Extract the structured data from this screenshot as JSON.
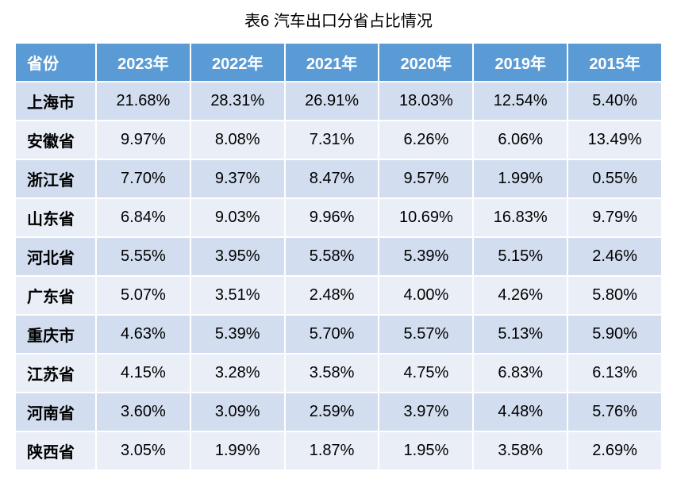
{
  "title": "表6 汽车出口分省占比情况",
  "table": {
    "type": "table",
    "header_bg": "#5b9bd5",
    "header_fg": "#ffffff",
    "row_odd_bg": "#d2deef",
    "row_even_bg": "#eaeff7",
    "border_color": "#ffffff",
    "font_size": 20,
    "columns": [
      "省份",
      "2023年",
      "2022年",
      "2021年",
      "2020年",
      "2019年",
      "2015年"
    ],
    "rows": [
      {
        "label": "上海市",
        "values": [
          "21.68%",
          "28.31%",
          "26.91%",
          "18.03%",
          "12.54%",
          "5.40%"
        ]
      },
      {
        "label": "安徽省",
        "values": [
          "9.97%",
          "8.08%",
          "7.31%",
          "6.26%",
          "6.06%",
          "13.49%"
        ]
      },
      {
        "label": "浙江省",
        "values": [
          "7.70%",
          "9.37%",
          "8.47%",
          "9.57%",
          "1.99%",
          "0.55%"
        ]
      },
      {
        "label": "山东省",
        "values": [
          "6.84%",
          "9.03%",
          "9.96%",
          "10.69%",
          "16.83%",
          "9.79%"
        ]
      },
      {
        "label": "河北省",
        "values": [
          "5.55%",
          "3.95%",
          "5.58%",
          "5.39%",
          "5.15%",
          "2.46%"
        ]
      },
      {
        "label": "广东省",
        "values": [
          "5.07%",
          "3.51%",
          "2.48%",
          "4.00%",
          "4.26%",
          "5.80%"
        ]
      },
      {
        "label": "重庆市",
        "values": [
          "4.63%",
          "5.39%",
          "5.70%",
          "5.57%",
          "5.13%",
          "5.90%"
        ]
      },
      {
        "label": "江苏省",
        "values": [
          "4.15%",
          "3.28%",
          "3.58%",
          "4.75%",
          "6.83%",
          "6.13%"
        ]
      },
      {
        "label": "河南省",
        "values": [
          "3.60%",
          "3.09%",
          "2.59%",
          "3.97%",
          "4.48%",
          "5.76%"
        ]
      },
      {
        "label": "陕西省",
        "values": [
          "3.05%",
          "1.99%",
          "1.87%",
          "1.95%",
          "3.58%",
          "2.69%"
        ]
      }
    ]
  }
}
